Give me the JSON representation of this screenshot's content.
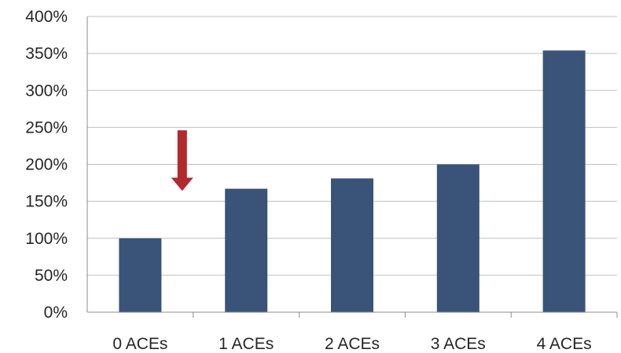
{
  "chart_data": {
    "type": "bar",
    "categories": [
      "0 ACEs",
      "1 ACEs",
      "2 ACEs",
      "3 ACEs",
      "4 ACEs"
    ],
    "values": [
      100,
      167,
      181,
      200,
      354
    ],
    "value_format": "percent",
    "ylim": [
      0,
      400
    ],
    "yticks": [
      0,
      50,
      100,
      150,
      200,
      250,
      300,
      350,
      400
    ],
    "ytick_labels": [
      "0%",
      "50%",
      "100%",
      "150%",
      "200%",
      "250%",
      "300%",
      "350%",
      "400%"
    ],
    "grid": true,
    "bar_color": "#3A5479",
    "grid_color": "#BFBFBF",
    "annotation": {
      "type": "arrow",
      "direction": "down",
      "points_to_category": "0 ACEs",
      "color": "#B02A2E"
    }
  }
}
